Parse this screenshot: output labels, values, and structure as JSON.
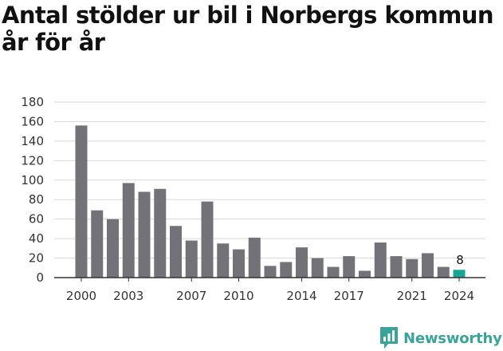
{
  "header": {
    "title": "Antal stölder ur bil i Norbergs kommun år för år"
  },
  "brand": {
    "name": "Newsworthy",
    "logo_icon": "newsworthy-logo-icon"
  },
  "chart_data": {
    "type": "bar",
    "title": "Antal stölder ur bil i Norbergs kommun år för år",
    "xlabel": "",
    "ylabel": "",
    "x": [
      2000,
      2001,
      2002,
      2003,
      2004,
      2005,
      2006,
      2007,
      2008,
      2009,
      2010,
      2011,
      2012,
      2013,
      2014,
      2015,
      2016,
      2017,
      2018,
      2019,
      2020,
      2021,
      2022,
      2023,
      2024
    ],
    "values": [
      156,
      69,
      60,
      97,
      88,
      91,
      53,
      38,
      78,
      35,
      29,
      41,
      12,
      16,
      31,
      20,
      11,
      22,
      7,
      36,
      22,
      19,
      25,
      11,
      8
    ],
    "ylim": [
      0,
      180
    ],
    "yticks": [
      0,
      20,
      40,
      60,
      80,
      100,
      120,
      140,
      160,
      180
    ],
    "xticks": [
      2000,
      2003,
      2007,
      2010,
      2014,
      2017,
      2021,
      2024
    ],
    "grid": true,
    "bar_color": "#737278",
    "highlight": {
      "x": 2024,
      "color": "#16a595",
      "label": "8"
    },
    "axis_color": "#333333",
    "grid_color": "#d9d9d9"
  }
}
